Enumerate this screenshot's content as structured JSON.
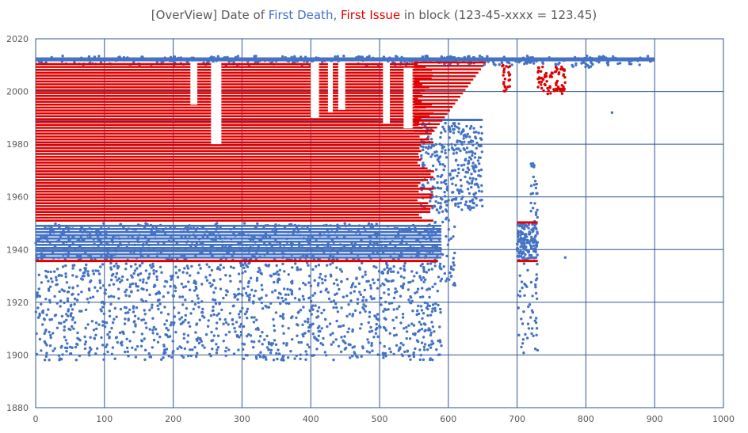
{
  "title": {
    "prefix": "[OverView] Date of ",
    "series1": "First Death",
    "sep": ", ",
    "series2": "First Issue",
    "suffix": " in block (123-45-xxxx = 123.45)"
  },
  "colors": {
    "first_death": "#4472C4",
    "first_issue": "#E00000",
    "grid": "#2F5597"
  },
  "chart_data": {
    "type": "scatter",
    "xlim": [
      0,
      1000
    ],
    "ylim": [
      1880,
      2020
    ],
    "x_ticks": [
      0,
      100,
      200,
      300,
      400,
      500,
      600,
      700,
      800,
      900,
      1000
    ],
    "y_ticks": [
      1880,
      1900,
      1920,
      1940,
      1960,
      1980,
      2000,
      2020
    ],
    "grid": true,
    "series": [
      {
        "name": "First Death",
        "color": "#4472C4",
        "summary": "dense band 1936-1950 for x 0-590, band 2010-2013 for x 0-900, scattered 1898-1935 for x 0-590, cluster x 700-730",
        "bands": [
          {
            "x": [
              0,
              590
            ],
            "y": [
              1936,
              1950
            ]
          },
          {
            "x": [
              0,
              900
            ],
            "y": [
              2010,
              2013
            ]
          },
          {
            "x": [
              0,
              650
            ],
            "y": [
              1988,
              1991
            ]
          },
          {
            "x": [
              700,
              730
            ],
            "y": [
              1936,
              1950
            ]
          }
        ]
      },
      {
        "name": "First Issue",
        "color": "#E00000",
        "summary": "dense band 1951-2011 for x 0-580, tapering to x ~655, line at 1936 for x 0-585, lines at 1936 and 1950 for x 700-730, points near 2000-2010 for x 730-770",
        "bands": [
          {
            "x": [
              0,
              580
            ],
            "y": [
              1951,
              2011
            ]
          },
          {
            "x": [
              560,
              655
            ],
            "y": [
              1996,
              2011
            ]
          },
          {
            "x": [
              0,
              585
            ],
            "y": [
              1936,
              1936
            ]
          },
          {
            "x": [
              700,
              730
            ],
            "y": [
              1936,
              1936
            ]
          },
          {
            "x": [
              700,
              730
            ],
            "y": [
              1950,
              1950
            ]
          },
          {
            "x": [
              735,
              770
            ],
            "y": [
              1999,
              2010
            ]
          }
        ]
      }
    ]
  }
}
